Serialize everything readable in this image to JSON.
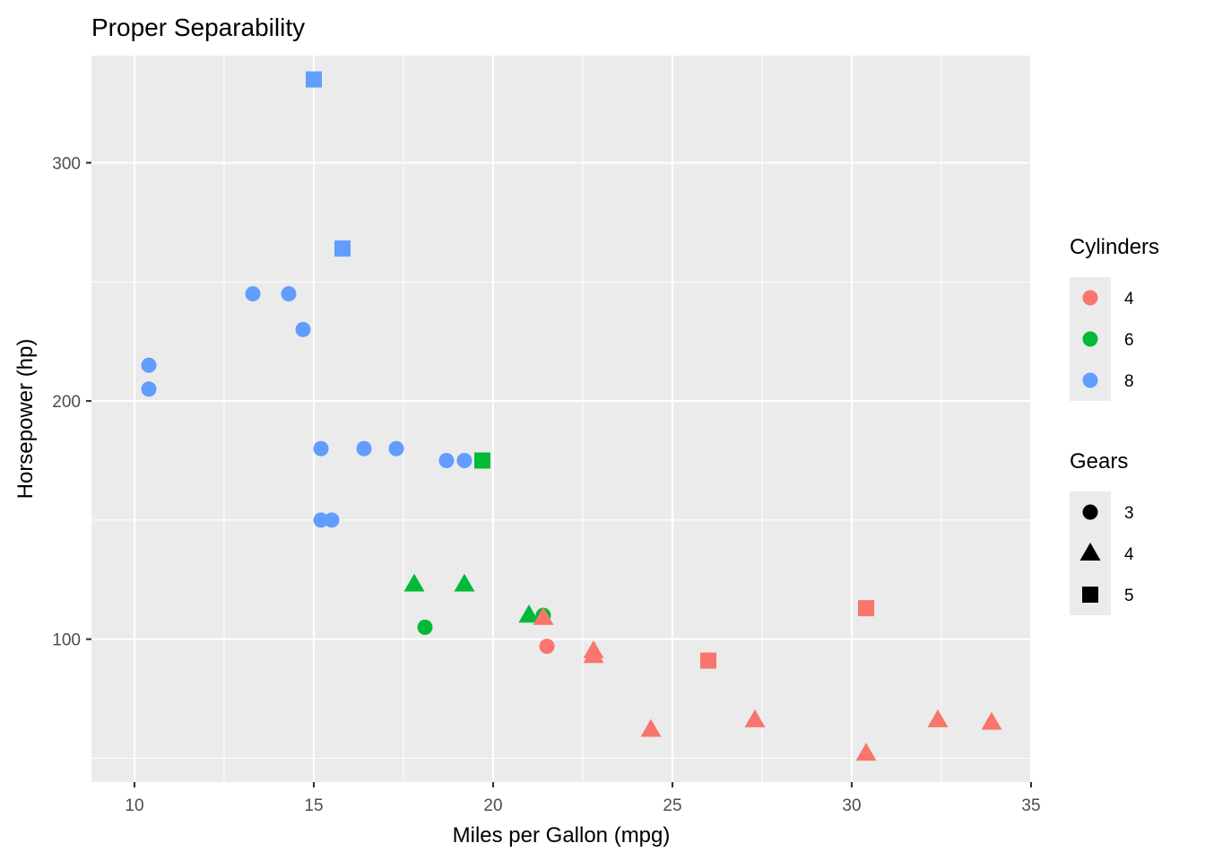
{
  "chart_data": {
    "type": "scatter",
    "title": "Proper Separability",
    "xlabel": "Miles per Gallon (mpg)",
    "ylabel": "Horsepower (hp)",
    "xlim": [
      8.8,
      35.0
    ],
    "ylim": [
      40,
      345
    ],
    "xticks": [
      10,
      15,
      20,
      25,
      30,
      35
    ],
    "yticks": [
      100,
      200,
      300
    ],
    "grid": true,
    "legend_position": "right",
    "color_legend": {
      "title": "Cylinders",
      "entries": [
        {
          "label": "4",
          "color": "#F8766D"
        },
        {
          "label": "6",
          "color": "#00BA38"
        },
        {
          "label": "8",
          "color": "#619CFF"
        }
      ]
    },
    "shape_legend": {
      "title": "Gears",
      "entries": [
        {
          "label": "3",
          "shape": "circle"
        },
        {
          "label": "4",
          "shape": "triangle"
        },
        {
          "label": "5",
          "shape": "square"
        }
      ]
    },
    "points": [
      {
        "x": 21.0,
        "y": 110,
        "cyl": "6",
        "gear": "4"
      },
      {
        "x": 21.0,
        "y": 110,
        "cyl": "6",
        "gear": "4"
      },
      {
        "x": 22.8,
        "y": 93,
        "cyl": "4",
        "gear": "4"
      },
      {
        "x": 21.4,
        "y": 110,
        "cyl": "6",
        "gear": "3"
      },
      {
        "x": 18.7,
        "y": 175,
        "cyl": "8",
        "gear": "3"
      },
      {
        "x": 18.1,
        "y": 105,
        "cyl": "6",
        "gear": "3"
      },
      {
        "x": 14.3,
        "y": 245,
        "cyl": "8",
        "gear": "3"
      },
      {
        "x": 24.4,
        "y": 62,
        "cyl": "4",
        "gear": "4"
      },
      {
        "x": 22.8,
        "y": 95,
        "cyl": "4",
        "gear": "4"
      },
      {
        "x": 19.2,
        "y": 123,
        "cyl": "6",
        "gear": "4"
      },
      {
        "x": 17.8,
        "y": 123,
        "cyl": "6",
        "gear": "4"
      },
      {
        "x": 16.4,
        "y": 180,
        "cyl": "8",
        "gear": "3"
      },
      {
        "x": 17.3,
        "y": 180,
        "cyl": "8",
        "gear": "3"
      },
      {
        "x": 15.2,
        "y": 180,
        "cyl": "8",
        "gear": "3"
      },
      {
        "x": 10.4,
        "y": 205,
        "cyl": "8",
        "gear": "3"
      },
      {
        "x": 10.4,
        "y": 215,
        "cyl": "8",
        "gear": "3"
      },
      {
        "x": 14.7,
        "y": 230,
        "cyl": "8",
        "gear": "3"
      },
      {
        "x": 32.4,
        "y": 66,
        "cyl": "4",
        "gear": "4"
      },
      {
        "x": 30.4,
        "y": 52,
        "cyl": "4",
        "gear": "4"
      },
      {
        "x": 33.9,
        "y": 65,
        "cyl": "4",
        "gear": "4"
      },
      {
        "x": 21.5,
        "y": 97,
        "cyl": "4",
        "gear": "3"
      },
      {
        "x": 15.5,
        "y": 150,
        "cyl": "8",
        "gear": "3"
      },
      {
        "x": 15.2,
        "y": 150,
        "cyl": "8",
        "gear": "3"
      },
      {
        "x": 13.3,
        "y": 245,
        "cyl": "8",
        "gear": "3"
      },
      {
        "x": 19.2,
        "y": 175,
        "cyl": "8",
        "gear": "3"
      },
      {
        "x": 27.3,
        "y": 66,
        "cyl": "4",
        "gear": "4"
      },
      {
        "x": 26.0,
        "y": 91,
        "cyl": "4",
        "gear": "5"
      },
      {
        "x": 30.4,
        "y": 113,
        "cyl": "4",
        "gear": "5"
      },
      {
        "x": 15.8,
        "y": 264,
        "cyl": "8",
        "gear": "5"
      },
      {
        "x": 19.7,
        "y": 175,
        "cyl": "6",
        "gear": "5"
      },
      {
        "x": 15.0,
        "y": 335,
        "cyl": "8",
        "gear": "5"
      },
      {
        "x": 21.4,
        "y": 109,
        "cyl": "4",
        "gear": "4"
      }
    ]
  }
}
